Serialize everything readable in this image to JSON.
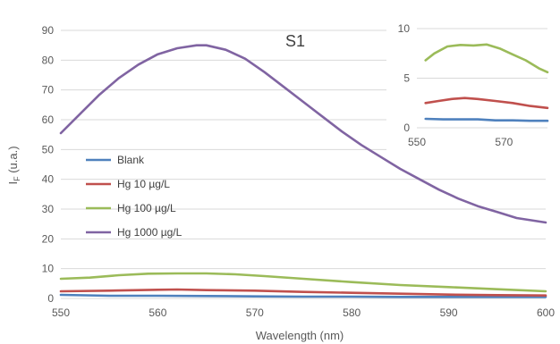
{
  "chart_data": [
    {
      "type": "line",
      "title": "S1",
      "xlabel": "Wavelength (nm)",
      "ylabel": "I",
      "ylabel_sub": "F",
      "ylabel_suffix": " (u.a.)",
      "xlim": [
        550,
        600
      ],
      "ylim": [
        0,
        90
      ],
      "x_ticks": [
        550,
        560,
        570,
        580,
        590,
        600
      ],
      "y_ticks": [
        0,
        10,
        20,
        30,
        40,
        50,
        60,
        70,
        80,
        90
      ],
      "legend_position": "left",
      "series": [
        {
          "name": "Blank",
          "color": "#4f81bd",
          "points": [
            [
              550,
              1.2
            ],
            [
              555,
              0.9
            ],
            [
              560,
              0.9
            ],
            [
              565,
              0.8
            ],
            [
              570,
              0.7
            ],
            [
              575,
              0.6
            ],
            [
              580,
              0.6
            ],
            [
              585,
              0.5
            ],
            [
              590,
              0.5
            ],
            [
              595,
              0.5
            ],
            [
              600,
              0.5
            ]
          ]
        },
        {
          "name": "Hg 10 µg/L",
          "color": "#c0504d",
          "points": [
            [
              550,
              2.4
            ],
            [
              555,
              2.6
            ],
            [
              560,
              2.9
            ],
            [
              562,
              3.0
            ],
            [
              565,
              2.8
            ],
            [
              570,
              2.6
            ],
            [
              575,
              2.2
            ],
            [
              580,
              1.9
            ],
            [
              585,
              1.6
            ],
            [
              590,
              1.3
            ],
            [
              595,
              1.1
            ],
            [
              600,
              1.0
            ]
          ]
        },
        {
          "name": "Hg 100 µg/L",
          "color": "#9bbb59",
          "points": [
            [
              550,
              6.6
            ],
            [
              553,
              7.0
            ],
            [
              556,
              7.8
            ],
            [
              559,
              8.3
            ],
            [
              562,
              8.4
            ],
            [
              565,
              8.4
            ],
            [
              568,
              8.1
            ],
            [
              571,
              7.5
            ],
            [
              575,
              6.6
            ],
            [
              580,
              5.5
            ],
            [
              585,
              4.5
            ],
            [
              590,
              3.8
            ],
            [
              595,
              3.1
            ],
            [
              600,
              2.4
            ]
          ]
        },
        {
          "name": "Hg 1000 µg/L",
          "color": "#8064a2",
          "points": [
            [
              550,
              55.5
            ],
            [
              552,
              62
            ],
            [
              554,
              68.5
            ],
            [
              556,
              74
            ],
            [
              558,
              78.5
            ],
            [
              560,
              82
            ],
            [
              562,
              84
            ],
            [
              564,
              85
            ],
            [
              565,
              85
            ],
            [
              567,
              83.5
            ],
            [
              569,
              80.5
            ],
            [
              571,
              76
            ],
            [
              573,
              71
            ],
            [
              575,
              66
            ],
            [
              577,
              61
            ],
            [
              579,
              56
            ],
            [
              581,
              51.5
            ],
            [
              583,
              47.5
            ],
            [
              585,
              43.5
            ],
            [
              587,
              40
            ],
            [
              589,
              36.5
            ],
            [
              591,
              33.5
            ],
            [
              593,
              31
            ],
            [
              595,
              29
            ],
            [
              597,
              27
            ],
            [
              600,
              25.5
            ]
          ]
        }
      ]
    },
    {
      "type": "line",
      "title": "",
      "xlabel": "",
      "ylabel": "",
      "xlim": [
        550,
        580
      ],
      "ylim": [
        0,
        10
      ],
      "x_ticks": [
        550,
        570
      ],
      "y_ticks": [
        0,
        5,
        10
      ],
      "legend_position": "none",
      "series": [
        {
          "color": "#4f81bd",
          "points": [
            [
              552,
              0.9
            ],
            [
              556,
              0.85
            ],
            [
              560,
              0.85
            ],
            [
              564,
              0.85
            ],
            [
              568,
              0.75
            ],
            [
              572,
              0.75
            ],
            [
              576,
              0.7
            ],
            [
              580,
              0.7
            ]
          ]
        },
        {
          "color": "#c0504d",
          "points": [
            [
              552,
              2.5
            ],
            [
              555,
              2.7
            ],
            [
              558,
              2.9
            ],
            [
              561,
              3.0
            ],
            [
              564,
              2.9
            ],
            [
              568,
              2.7
            ],
            [
              572,
              2.5
            ],
            [
              576,
              2.2
            ],
            [
              580,
              2.0
            ]
          ]
        },
        {
          "color": "#9bbb59",
          "points": [
            [
              552,
              6.8
            ],
            [
              554,
              7.5
            ],
            [
              557,
              8.2
            ],
            [
              560,
              8.35
            ],
            [
              563,
              8.3
            ],
            [
              566,
              8.4
            ],
            [
              569,
              8.0
            ],
            [
              572,
              7.4
            ],
            [
              575,
              6.8
            ],
            [
              578,
              6.0
            ],
            [
              580,
              5.6
            ]
          ]
        }
      ]
    }
  ]
}
